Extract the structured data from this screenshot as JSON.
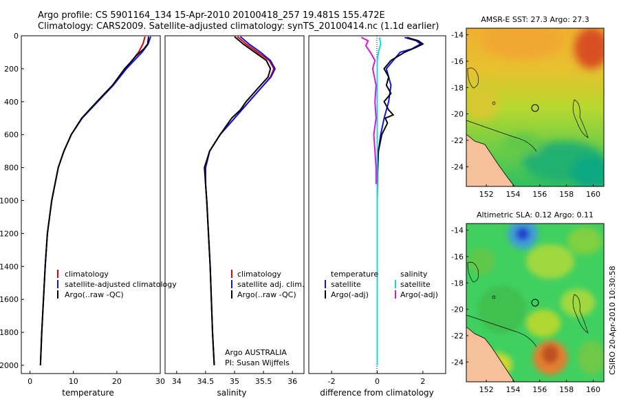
{
  "figure": {
    "title_line1": "Argo profile: CS 5901164_134 15-Apr-2010 20100418_257 19.481S 155.472E",
    "title_line2": "Climatology: CARS2009. Satellite-adjusted climatology: synTS_20100414.nc (1.1d earlier)",
    "stamp": "CSIRO 20-Apr-2010 10:30:58",
    "credit_line1": "Argo AUSTRALIA",
    "credit_line2": "PI: Susan Wijffels"
  },
  "colors": {
    "climatology": "#e00000",
    "satellite": "#1010e0",
    "argo": "#000000",
    "sal_satellite": "#00e0e0",
    "sal_argo": "#e010e0",
    "land": "#f5c09a"
  },
  "chart_data": [
    {
      "type": "line",
      "id": "temperature-profile",
      "xlabel": "temperature",
      "ylabel": "",
      "xlim": [
        -2,
        30
      ],
      "ylim": [
        0,
        2050
      ],
      "y_reversed": true,
      "xticks": [
        "0",
        "10",
        "20",
        "30"
      ],
      "yticks": [
        "0",
        "200",
        "400",
        "600",
        "800",
        "1000",
        "1200",
        "1400",
        "1600",
        "1800",
        "2000"
      ],
      "legend": [
        "climatology",
        "satellite-adjusted climatology",
        "Argo(..raw -QC)"
      ],
      "series": [
        {
          "name": "climatology",
          "depth": [
            5,
            50,
            100,
            150,
            200,
            300,
            400,
            500,
            600,
            700,
            800,
            1000,
            1200,
            1400,
            1600,
            1800,
            2000
          ],
          "values": [
            26.5,
            26.0,
            25.0,
            23.5,
            22.0,
            19.0,
            15.5,
            12.0,
            9.5,
            7.8,
            6.5,
            5.0,
            4.0,
            3.5,
            3.1,
            2.7,
            2.4
          ]
        },
        {
          "name": "satellite",
          "depth": [
            5,
            50,
            100,
            150,
            200,
            300,
            400,
            500,
            600,
            700,
            800,
            1000,
            1200,
            1400,
            1600,
            1800,
            2000
          ],
          "values": [
            27.8,
            27.2,
            25.8,
            24.0,
            22.2,
            19.2,
            15.6,
            12.0,
            9.5,
            7.8,
            6.5,
            5.0,
            4.0,
            3.5,
            3.1,
            2.7,
            2.4
          ]
        },
        {
          "name": "Argo(..raw -QC)",
          "depth": [
            5,
            50,
            80,
            120,
            160,
            200,
            300,
            400,
            500,
            600,
            700,
            800,
            1000,
            1200,
            1400,
            1600,
            1800,
            2000
          ],
          "values": [
            27.3,
            27.1,
            26.2,
            24.5,
            23.2,
            21.8,
            19.0,
            15.4,
            11.9,
            9.5,
            7.8,
            6.5,
            5.0,
            4.0,
            3.5,
            3.1,
            2.7,
            2.4
          ]
        }
      ]
    },
    {
      "type": "line",
      "id": "salinity-profile",
      "xlabel": "salinity",
      "xlim": [
        33.8,
        36.2
      ],
      "ylim": [
        0,
        2050
      ],
      "y_reversed": true,
      "xticks": [
        "34",
        "34.5",
        "35",
        "35.5",
        "36"
      ],
      "legend": [
        "climatology",
        "satellite adj. clim.",
        "Argo(..raw -QC)"
      ],
      "series": [
        {
          "name": "climatology",
          "depth": [
            5,
            50,
            100,
            150,
            200,
            250,
            300,
            400,
            500,
            600,
            700,
            800,
            900,
            1000,
            1200,
            1400,
            1600,
            1800,
            2000
          ],
          "values": [
            35.05,
            35.2,
            35.4,
            35.6,
            35.68,
            35.62,
            35.5,
            35.25,
            35.0,
            34.75,
            34.57,
            34.5,
            34.5,
            34.52,
            34.55,
            34.58,
            34.6,
            34.62,
            34.65
          ]
        },
        {
          "name": "satellite",
          "depth": [
            5,
            50,
            100,
            150,
            200,
            250,
            300,
            400,
            500,
            600,
            700,
            800,
            900,
            1000,
            1200,
            1400,
            1600,
            1800,
            2000
          ],
          "values": [
            35.1,
            35.25,
            35.45,
            35.62,
            35.7,
            35.63,
            35.5,
            35.25,
            35.0,
            34.75,
            34.57,
            34.5,
            34.5,
            34.52,
            34.55,
            34.58,
            34.6,
            34.62,
            34.65
          ]
        },
        {
          "name": "Argo(..raw -QC)",
          "depth": [
            5,
            50,
            100,
            150,
            200,
            250,
            300,
            400,
            450,
            500,
            550,
            600,
            700,
            800,
            900,
            1000,
            1200,
            1400,
            1600,
            1800,
            2000
          ],
          "values": [
            35.0,
            35.15,
            35.35,
            35.55,
            35.62,
            35.58,
            35.45,
            35.2,
            35.1,
            34.95,
            34.85,
            34.75,
            34.57,
            34.48,
            34.5,
            34.52,
            34.55,
            34.58,
            34.6,
            34.62,
            34.65
          ]
        }
      ]
    },
    {
      "type": "line",
      "id": "difference-profile",
      "xlabel": "difference from climatology",
      "xlim": [
        -3,
        3
      ],
      "ylim": [
        0,
        2050
      ],
      "y_reversed": true,
      "xticks": [
        "-2",
        "0",
        "2"
      ],
      "legend_left_title": "temperature",
      "legend_right_title": "salinity",
      "legend": [
        "satellite",
        "Argo(-adj)",
        "satellite",
        "Argo(-adj)"
      ],
      "series": [
        {
          "name": "temperature satellite",
          "depth": [
            10,
            30,
            50,
            80,
            100,
            150,
            200,
            300,
            400,
            500,
            600,
            700,
            800,
            900,
            1000,
            1500,
            2000
          ],
          "values": [
            1.2,
            1.7,
            1.9,
            1.5,
            1.0,
            0.7,
            0.4,
            0.6,
            0.5,
            0.3,
            0.15,
            0.05,
            0.02,
            0.0,
            0.0,
            0.0,
            0.0
          ]
        },
        {
          "name": "temperature Argo(-adj)",
          "depth": [
            10,
            30,
            50,
            70,
            100,
            150,
            200,
            250,
            300,
            350,
            400,
            450,
            480,
            500,
            530,
            600,
            700,
            800,
            1000,
            1500,
            2000
          ],
          "values": [
            1.3,
            1.8,
            2.0,
            1.7,
            1.2,
            0.6,
            0.3,
            0.5,
            0.4,
            0.6,
            0.3,
            0.5,
            0.7,
            0.35,
            0.45,
            0.2,
            0.05,
            0.02,
            0.0,
            0.0,
            0.0
          ]
        },
        {
          "name": "salinity satellite",
          "depth": [
            10,
            50,
            100,
            150,
            200,
            400,
            600,
            800,
            1000,
            1500,
            2000
          ],
          "values": [
            0.1,
            0.15,
            0.05,
            0.0,
            0.0,
            0.0,
            0.0,
            0.0,
            0.0,
            0.0,
            0.0
          ]
        },
        {
          "name": "salinity Argo(-adj)",
          "depth": [
            10,
            30,
            60,
            100,
            150,
            200,
            300,
            400,
            500,
            600,
            700,
            800,
            900
          ],
          "values": [
            -0.7,
            -0.4,
            -0.5,
            -0.3,
            -0.1,
            -0.2,
            -0.05,
            -0.1,
            -0.05,
            -0.15,
            -0.1,
            -0.05,
            -0.05
          ]
        }
      ]
    },
    {
      "type": "heatmap",
      "id": "sst-map",
      "title": "AMSR-E SST: 27.3 Argo: 27.3",
      "xlim": [
        150.5,
        160.8
      ],
      "ylim": [
        -25.5,
        -13.5
      ],
      "xticks": [
        "152",
        "154",
        "156",
        "158",
        "160"
      ],
      "yticks": [
        "-14",
        "-16",
        "-18",
        "-20",
        "-22",
        "-24"
      ],
      "float_position": [
        155.472,
        -19.481
      ]
    },
    {
      "type": "heatmap",
      "id": "sla-map",
      "title": "Altimetric SLA: 0.12 Argo: 0.11",
      "xlim": [
        150.5,
        160.8
      ],
      "ylim": [
        -25.5,
        -13.5
      ],
      "xticks": [
        "152",
        "154",
        "156",
        "158",
        "160"
      ],
      "yticks": [
        "-14",
        "-16",
        "-18",
        "-20",
        "-22",
        "-24"
      ],
      "float_position": [
        155.472,
        -19.481
      ]
    }
  ]
}
